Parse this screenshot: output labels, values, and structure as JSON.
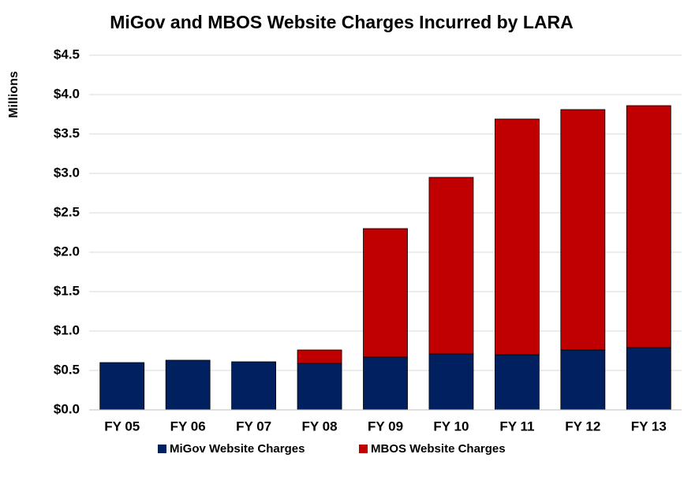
{
  "chart_data": {
    "type": "stacked_bar",
    "title": "MiGov and MBOS Website Charges Incurred by LARA",
    "y_label": "Millions",
    "categories": [
      "FY 05",
      "FY 06",
      "FY 07",
      "FY 08",
      "FY 09",
      "FY 10",
      "FY 11",
      "FY 12",
      "FY 13"
    ],
    "series": [
      {
        "name": "MiGov Website Charges",
        "color": "#002060",
        "values": [
          0.6,
          0.63,
          0.61,
          0.59,
          0.67,
          0.71,
          0.7,
          0.76,
          0.79
        ]
      },
      {
        "name": "MBOS Website Charges",
        "color": "#c00000",
        "values": [
          0,
          0,
          0,
          0.17,
          1.63,
          2.24,
          2.99,
          3.05,
          3.07
        ]
      }
    ],
    "ylim": [
      0,
      4.5
    ],
    "yticks": [
      {
        "value": 0,
        "label": "$0.0"
      },
      {
        "value": 0.5,
        "label": "$0.5"
      },
      {
        "value": 1,
        "label": "$1.0"
      },
      {
        "value": 1.5,
        "label": "$1.5"
      },
      {
        "value": 2,
        "label": "$2.0"
      },
      {
        "value": 2.5,
        "label": "$2.5"
      },
      {
        "value": 3,
        "label": "$3.0"
      },
      {
        "value": 3.5,
        "label": "$3.5"
      },
      {
        "value": 4,
        "label": "$4.0"
      },
      {
        "value": 4.5,
        "label": "$4.5"
      }
    ],
    "grid": true,
    "legend": "bottom"
  }
}
